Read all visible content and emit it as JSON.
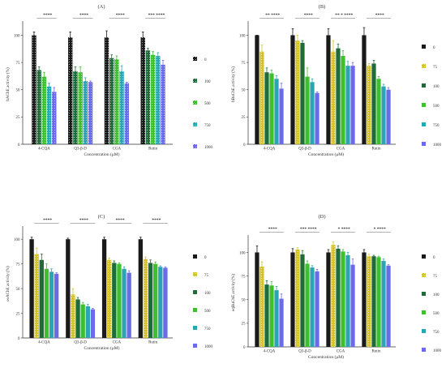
{
  "figure": {
    "background": "#ffffff"
  },
  "chart_data": [
    {
      "type": "bar",
      "panel_label": "(A)",
      "ylabel": "hAChE activity (%)",
      "xlabel": "Concentration (μM)",
      "ylim": [
        0,
        110
      ],
      "yticks": [
        0,
        25,
        50,
        75,
        100
      ],
      "categories": [
        "4-CQA",
        "Q3-β-D",
        "CGA",
        "Rutin"
      ],
      "significance": [
        "****",
        "****",
        "****",
        "*** ****"
      ],
      "series": [
        {
          "name": "0",
          "color": "#1a1a1a",
          "pattern": "dots",
          "values": [
            100,
            98,
            98,
            98
          ],
          "errors": [
            3,
            5,
            6,
            5
          ]
        },
        {
          "name": "100",
          "color": "#1f6b3a",
          "pattern": "dots",
          "values": [
            68,
            67,
            79,
            86
          ],
          "errors": [
            3,
            4,
            3,
            2
          ]
        },
        {
          "name": "500",
          "color": "#3fbf2f",
          "pattern": "dots",
          "values": [
            62,
            66,
            78,
            82
          ],
          "errors": [
            4,
            5,
            3,
            3
          ]
        },
        {
          "name": "750",
          "color": "#2aa5b3",
          "pattern": "dots",
          "values": [
            53,
            58,
            67,
            81
          ],
          "errors": [
            3,
            3,
            5,
            3
          ]
        },
        {
          "name": "1000",
          "color": "#6b6bea",
          "pattern": "dots",
          "values": [
            48,
            57,
            56,
            73
          ],
          "errors": [
            4,
            1,
            1,
            4
          ]
        }
      ]
    },
    {
      "type": "bar",
      "panel_label": "(B)",
      "ylabel": "hBuChE activity (%)",
      "xlabel": "Concentration (μM)",
      "ylim": [
        0,
        110
      ],
      "yticks": [
        0,
        25,
        50,
        75,
        100
      ],
      "categories": [
        "4-CQA",
        "Q3-β-D",
        "CGA",
        "Rutin"
      ],
      "significance": [
        "** ****",
        "****",
        "** * ****",
        "****"
      ],
      "legend": [
        "0",
        "75",
        "100",
        "500",
        "750",
        "1000"
      ],
      "series": [
        {
          "name": "0",
          "color": "#1a1a1a",
          "pattern": "none",
          "values": [
            100,
            100,
            100,
            100
          ],
          "errors": [
            0,
            6,
            6,
            7
          ]
        },
        {
          "name": "75",
          "color": "#d4c429",
          "pattern": "dots",
          "values": [
            85,
            95,
            85,
            72
          ],
          "errors": [
            6,
            5,
            10,
            2
          ]
        },
        {
          "name": "100",
          "color": "#1f6b3a",
          "pattern": "none",
          "values": [
            66,
            93,
            88,
            74
          ],
          "errors": [
            4,
            2,
            4,
            3
          ]
        },
        {
          "name": "500",
          "color": "#3fbf2f",
          "pattern": "none",
          "values": [
            65,
            62,
            81,
            60
          ],
          "errors": [
            3,
            8,
            5,
            2
          ]
        },
        {
          "name": "750",
          "color": "#2aa5b3",
          "pattern": "none",
          "values": [
            60,
            57,
            72,
            53
          ],
          "errors": [
            3,
            3,
            4,
            2
          ]
        },
        {
          "name": "1000",
          "color": "#6b6bea",
          "pattern": "none",
          "values": [
            51,
            47,
            72,
            50
          ],
          "errors": [
            5,
            1,
            3,
            2
          ]
        }
      ]
    },
    {
      "type": "bar",
      "panel_label": "(C)",
      "ylabel": "eeAChE activity (%)",
      "xlabel": "Concentration (μM)",
      "ylim": [
        0,
        110
      ],
      "yticks": [
        0,
        25,
        50,
        75,
        100
      ],
      "categories": [
        "4-CQA",
        "Q3-β-D",
        "CGA",
        "Rutin"
      ],
      "significance": [
        "****",
        "****",
        "****",
        "****"
      ],
      "legend": [
        "0",
        "75",
        "100",
        "500",
        "750",
        "1000"
      ],
      "series": [
        {
          "name": "0",
          "color": "#1a1a1a",
          "pattern": "none",
          "values": [
            100,
            100,
            100,
            100
          ],
          "errors": [
            2,
            1,
            2,
            2
          ]
        },
        {
          "name": "75",
          "color": "#d4c429",
          "pattern": "dots",
          "values": [
            85,
            44,
            79,
            80
          ],
          "errors": [
            6,
            6,
            2,
            2
          ]
        },
        {
          "name": "100",
          "color": "#1f6b3a",
          "pattern": "none",
          "values": [
            79,
            39,
            76,
            76
          ],
          "errors": [
            6,
            2,
            2,
            3
          ]
        },
        {
          "name": "500",
          "color": "#3fbf2f",
          "pattern": "none",
          "values": [
            70,
            34,
            75,
            75
          ],
          "errors": [
            5,
            2,
            1,
            2
          ]
        },
        {
          "name": "750",
          "color": "#2aa5b3",
          "pattern": "none",
          "values": [
            67,
            32,
            70,
            72
          ],
          "errors": [
            3,
            2,
            2,
            1
          ]
        },
        {
          "name": "1000",
          "color": "#6b6bea",
          "pattern": "none",
          "values": [
            65,
            29,
            66,
            71
          ],
          "errors": [
            1,
            1,
            2,
            1
          ]
        }
      ]
    },
    {
      "type": "bar",
      "panel_label": "(D)",
      "ylabel": "eqBuChE activity (%)",
      "xlabel": "Concentration (μM)",
      "ylim": [
        0,
        115
      ],
      "yticks": [
        0,
        25,
        50,
        75,
        100
      ],
      "categories": [
        "4-CQA",
        "Q3-β-D",
        "CGA",
        "Rutin"
      ],
      "significance": [
        "****",
        "*** ****",
        "* ****",
        "* ****"
      ],
      "legend": [
        "0",
        "75",
        "100",
        "500",
        "750",
        "1000"
      ],
      "series": [
        {
          "name": "0",
          "color": "#1a1a1a",
          "pattern": "none",
          "values": [
            100,
            100,
            100,
            100
          ],
          "errors": [
            7,
            4,
            3,
            3
          ]
        },
        {
          "name": "75",
          "color": "#d4c429",
          "pattern": "dots",
          "values": [
            85,
            103,
            108,
            96
          ],
          "errors": [
            5,
            2,
            3,
            2
          ]
        },
        {
          "name": "100",
          "color": "#1f6b3a",
          "pattern": "none",
          "values": [
            66,
            98,
            104,
            96
          ],
          "errors": [
            4,
            4,
            3,
            1
          ]
        },
        {
          "name": "500",
          "color": "#3fbf2f",
          "pattern": "none",
          "values": [
            65,
            88,
            101,
            95
          ],
          "errors": [
            4,
            3,
            2,
            1
          ]
        },
        {
          "name": "750",
          "color": "#2aa5b3",
          "pattern": "none",
          "values": [
            60,
            84,
            97,
            91
          ],
          "errors": [
            4,
            2,
            3,
            2
          ]
        },
        {
          "name": "1000",
          "color": "#6b6bea",
          "pattern": "none",
          "values": [
            51,
            80,
            87,
            86
          ],
          "errors": [
            5,
            2,
            6,
            1
          ]
        }
      ]
    }
  ]
}
